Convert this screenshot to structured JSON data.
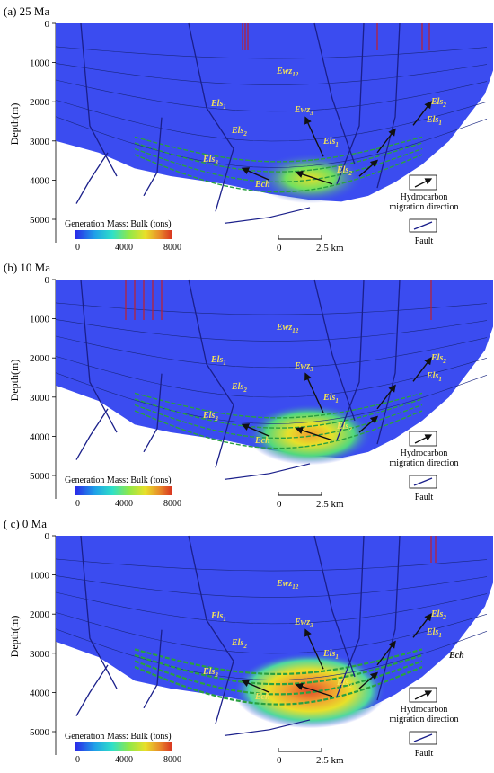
{
  "panels": [
    {
      "id": "a",
      "title": "(a)  25 Ma",
      "y_ticks": [
        "0",
        "1000",
        "2000",
        "3000",
        "4000",
        "5000"
      ]
    },
    {
      "id": "b",
      "title": "(b)  10 Ma",
      "y_ticks": [
        "0",
        "1000",
        "2000",
        "3000",
        "4000",
        "5000"
      ]
    },
    {
      "id": "c",
      "title": "( c)  0 Ma",
      "y_ticks": [
        "0",
        "1000",
        "2000",
        "3000",
        "4000",
        "5000"
      ]
    }
  ],
  "axis": {
    "ylabel": "Depth(m)"
  },
  "formations": {
    "ewz12": {
      "base": "Ewz",
      "sub": "12"
    },
    "ewz3": {
      "base": "Ewz",
      "sub": "3"
    },
    "els1": {
      "base": "Els",
      "sub": "1"
    },
    "els2": {
      "base": "Els",
      "sub": "2"
    },
    "els3": {
      "base": "Els",
      "sub": "3"
    },
    "ech": {
      "base": "Ech",
      "sub": ""
    }
  },
  "legend": {
    "migration": "Hydrocarbon\nmigration direction",
    "migration_l1": "Hydrocarbon",
    "migration_l2": "migration direction",
    "fault": "Fault"
  },
  "colorbar": {
    "title": "Generation Mass: Bulk (tons)",
    "ticks": [
      "0",
      "4000",
      "8000"
    ],
    "colors": [
      "#2a2ae8",
      "#1fa0e8",
      "#2fe0c8",
      "#8fe84a",
      "#e8e02a",
      "#e88a2a",
      "#d83020"
    ]
  },
  "scalebar": {
    "ticks": [
      "0",
      "2.5 km"
    ]
  },
  "colors": {
    "basin": "#3b4cf0",
    "grid": "#1a2780",
    "fault": "#1a1f8a",
    "red": "#c0202a",
    "green": "#2aa040",
    "yellow": "#f3e25a"
  }
}
